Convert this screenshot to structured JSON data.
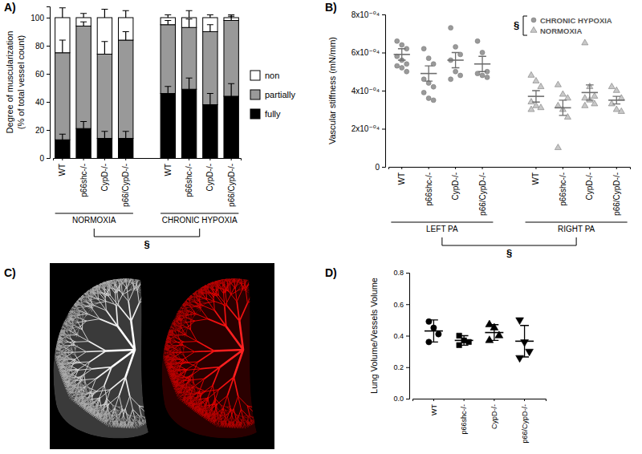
{
  "chart_data": [
    {
      "type": "bar",
      "title": "A)",
      "stacked": true,
      "legend": "right",
      "ylabel": [
        "Degree of muscularization",
        "(% of total vessel count)"
      ],
      "categories": [
        "WT",
        "p66shc-/-",
        "CypD-/-",
        "p66/CypD-/-",
        null,
        "WT",
        "p66shc-/-",
        "CypD-/-",
        "p66/CypD-/-"
      ],
      "groups": [
        "NORMOXIA",
        "CHRONIC HYPOXIA"
      ],
      "annotations": [
        "§"
      ],
      "ylim": [
        0,
        108
      ],
      "yticks": [
        0,
        20,
        40,
        60,
        80,
        100
      ],
      "series": [
        {
          "name": "fully",
          "color": "#000000",
          "values": [
            13,
            21,
            14,
            14,
            null,
            46,
            49,
            38,
            44
          ],
          "errors": [
            4,
            5,
            5,
            5,
            null,
            5,
            8,
            8,
            9
          ]
        },
        {
          "name": "partially",
          "color": "#999999",
          "values": [
            62,
            73,
            60,
            70,
            null,
            49,
            44,
            52,
            54
          ],
          "errors": [
            9,
            3,
            9,
            6,
            null,
            3,
            6,
            5,
            4
          ]
        },
        {
          "name": "non",
          "color": "#ffffff",
          "values": [
            25,
            6,
            26,
            16,
            null,
            5,
            7,
            10,
            2
          ],
          "errors": [
            7,
            3,
            6,
            5,
            null,
            2,
            5,
            2,
            1
          ]
        }
      ]
    },
    {
      "type": "scatter",
      "title": "B)",
      "legend": "upper right",
      "legend_title": "§",
      "ylabel": "Vascular stiffness (mN/mm)",
      "categories": [
        "WT",
        "p66shc-/-",
        "CypD-/-",
        "p66/CypD-/-",
        null,
        "WT",
        "p66shc-/-",
        "CypD-/-",
        "p66/CypD-/-"
      ],
      "groups": [
        "LEFT PA",
        "RIGHT PA"
      ],
      "annotations": [
        "§"
      ],
      "ylim": [
        0,
        0.0008
      ],
      "yticks": [
        0,
        {
          "value": 0.0002,
          "label": "2x10⁻⁰⁴"
        },
        {
          "value": 0.0004,
          "label": "4x10⁻⁰⁴"
        },
        {
          "value": 0.0006,
          "label": "6x10⁻⁰⁴"
        },
        {
          "value": 0.0008,
          "label": "8x10⁻⁰⁴"
        }
      ],
      "series": [
        {
          "name": "CHRONIC HYPOXIA",
          "marker": "circle",
          "color": "#9a9a9a",
          "values": [
            [
              0.00066,
              0.00064,
              0.00062,
              0.00058,
              0.00056,
              0.00054,
              0.00053,
              0.00052,
              0.0005
            ],
            [
              0.00062,
              0.00057,
              0.00054,
              0.00046,
              0.00044,
              0.00042,
              0.00039,
              0.00036,
              0.00035
            ],
            [
              0.00073,
              0.00063,
              0.00059,
              0.00056,
              0.0005,
              0.00048,
              0.00046
            ],
            [
              0.00066,
              0.0006,
              0.0005,
              0.00049,
              0.00048,
              0.00047
            ],
            null,
            null,
            null,
            null,
            null
          ]
        },
        {
          "name": "NORMOXIA",
          "marker": "triangle",
          "color": "#c8c8c8",
          "values": [
            null,
            null,
            null,
            null,
            null,
            [
              0.00048,
              0.00045,
              0.00042,
              0.00034,
              0.00032,
              0.00031,
              0.0003
            ],
            [
              0.00043,
              0.00038,
              0.00036,
              0.00032,
              0.0003,
              0.00026,
              0.0001
            ],
            [
              0.00065,
              0.00042,
              0.00037,
              0.00036,
              0.00035,
              0.00033,
              0.00032
            ],
            [
              0.00042,
              0.0004,
              0.00036,
              0.00033,
              0.0003,
              0.00029
            ]
          ]
        }
      ],
      "mean": [
        0.00059,
        0.00049,
        0.00056,
        0.00054,
        null,
        0.00037,
        0.00031,
        0.00039,
        0.00035
      ],
      "sem": [
        3e-05,
        4e-05,
        4e-05,
        4e-05,
        null,
        3e-05,
        4e-05,
        4e-05,
        2e-05
      ]
    },
    {
      "type": "image",
      "title": "C)"
    },
    {
      "type": "scatter",
      "title": "D)",
      "ylabel": "Lung Volume/Vessels Volume",
      "categories": [
        "WT",
        "p66shc-/-",
        "CypD-/-",
        "p66/CypD-/-"
      ],
      "color": "#000000",
      "marker": [
        "circle",
        "square",
        "triangle",
        "triangle-down"
      ],
      "values": [
        [
          0.49,
          0.45,
          0.41,
          0.36
        ],
        [
          0.4,
          0.37,
          0.36,
          0.34
        ],
        [
          0.47,
          0.45,
          0.4,
          0.37
        ],
        [
          0.5,
          0.36,
          0.3,
          0.26
        ]
      ],
      "mean": [
        0.43,
        0.37,
        0.42,
        0.365
      ],
      "sd": [
        0.07,
        0.03,
        0.05,
        0.1
      ],
      "ylim": [
        0,
        0.8
      ],
      "yticks": [
        {
          "value": 0,
          "label": "0.0"
        },
        0.2,
        0.4,
        0.6,
        0.8
      ]
    }
  ]
}
